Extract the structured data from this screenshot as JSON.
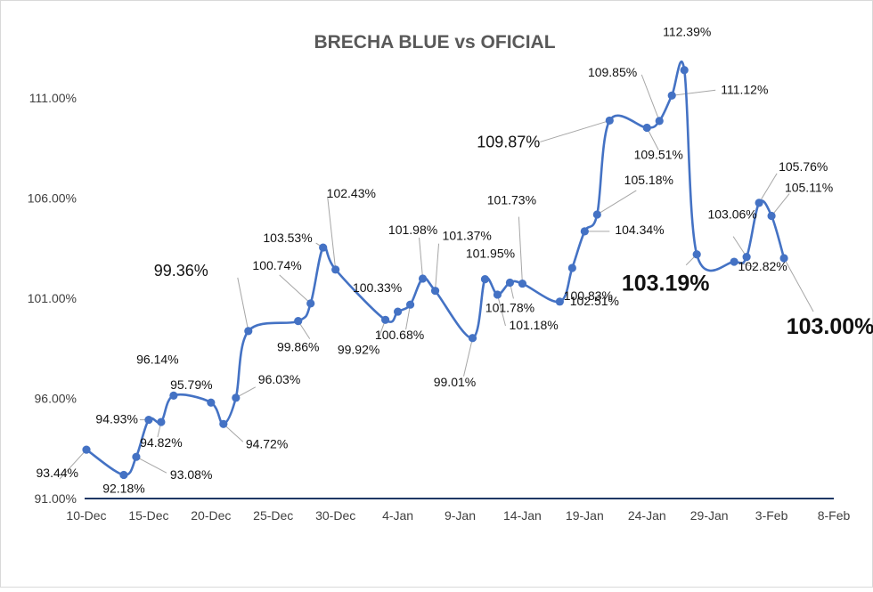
{
  "chart_data": {
    "type": "line",
    "title": "BRECHA BLUE vs OFICIAL",
    "xlabel": "",
    "ylabel": "",
    "x_axis": {
      "range_days": [
        0,
        60
      ],
      "ticks": [
        {
          "label": "10-Dec",
          "day": 0
        },
        {
          "label": "15-Dec",
          "day": 5
        },
        {
          "label": "20-Dec",
          "day": 10
        },
        {
          "label": "25-Dec",
          "day": 15
        },
        {
          "label": "30-Dec",
          "day": 20
        },
        {
          "label": "4-Jan",
          "day": 25
        },
        {
          "label": "9-Jan",
          "day": 30
        },
        {
          "label": "14-Jan",
          "day": 35
        },
        {
          "label": "19-Jan",
          "day": 40
        },
        {
          "label": "24-Jan",
          "day": 45
        },
        {
          "label": "29-Jan",
          "day": 50
        },
        {
          "label": "3-Feb",
          "day": 55
        },
        {
          "label": "8-Feb",
          "day": 60
        }
      ]
    },
    "y_axis": {
      "range": [
        91,
        111.5
      ],
      "ticks": [
        {
          "value": 91,
          "label": "91.00%"
        },
        {
          "value": 96,
          "label": "96.00%"
        },
        {
          "value": 101,
          "label": "101.00%"
        },
        {
          "value": 106,
          "label": "106.00%"
        },
        {
          "value": 111,
          "label": "111.00%"
        }
      ]
    },
    "grid": false,
    "smooth": true,
    "series_color": "#4472c4",
    "label_color": "#111111",
    "leader_color": "#a6a6a6",
    "series": [
      {
        "points": [
          {
            "day": 0,
            "y": 93.44,
            "label": "93.44%"
          },
          {
            "day": 3,
            "y": 92.18,
            "label": "92.18%"
          },
          {
            "day": 4,
            "y": 93.08,
            "label": "93.08%"
          },
          {
            "day": 5,
            "y": 94.93,
            "label": "94.93%"
          },
          {
            "day": 6,
            "y": 94.82,
            "label": "94.82%"
          },
          {
            "day": 7,
            "y": 96.14,
            "label": "96.14%"
          },
          {
            "day": 10,
            "y": 95.79,
            "label": "95.79%"
          },
          {
            "day": 11,
            "y": 94.72,
            "label": "94.72%"
          },
          {
            "day": 12,
            "y": 96.03,
            "label": "96.03%"
          },
          {
            "day": 13,
            "y": 99.36,
            "label": "99.36%"
          },
          {
            "day": 17,
            "y": 99.86,
            "label": "99.86%"
          },
          {
            "day": 18,
            "y": 100.74,
            "label": "100.74%"
          },
          {
            "day": 19,
            "y": 103.53,
            "label": "103.53%"
          },
          {
            "day": 20,
            "y": 102.43,
            "label": "102.43%"
          },
          {
            "day": 24,
            "y": 99.92,
            "label": "99.92%"
          },
          {
            "day": 25,
            "y": 100.33,
            "label": "100.33%"
          },
          {
            "day": 26,
            "y": 100.68,
            "label": "100.68%"
          },
          {
            "day": 27,
            "y": 101.98,
            "label": "101.98%"
          },
          {
            "day": 28,
            "y": 101.37,
            "label": "101.37%"
          },
          {
            "day": 31,
            "y": 99.01,
            "label": "99.01%"
          },
          {
            "day": 32,
            "y": 101.95,
            "label": "101.95%"
          },
          {
            "day": 33,
            "y": 101.18,
            "label": "101.18%"
          },
          {
            "day": 34,
            "y": 101.78,
            "label": "101.78%"
          },
          {
            "day": 35,
            "y": 101.73,
            "label": "101.73%"
          },
          {
            "day": 38,
            "y": 100.83,
            "label": "100.83%"
          },
          {
            "day": 39,
            "y": 102.51,
            "label": "102.51%"
          },
          {
            "day": 40,
            "y": 104.34,
            "label": "104.34%"
          },
          {
            "day": 41,
            "y": 105.18,
            "label": "105.18%"
          },
          {
            "day": 42,
            "y": 109.87,
            "label": "109.87%"
          },
          {
            "day": 45,
            "y": 109.51,
            "label": "109.51%"
          },
          {
            "day": 46,
            "y": 109.85,
            "label": "109.85%"
          },
          {
            "day": 47,
            "y": 111.12,
            "label": "111.12%"
          },
          {
            "day": 48,
            "y": 112.39,
            "label": "112.39%"
          },
          {
            "day": 49,
            "y": 103.19,
            "label": "103.19%"
          },
          {
            "day": 52,
            "y": 102.82,
            "label": "102.82%"
          },
          {
            "day": 53,
            "y": 103.06,
            "label": "103.06%"
          },
          {
            "day": 54,
            "y": 105.76,
            "label": "105.76%"
          },
          {
            "day": 55,
            "y": 105.11,
            "label": "105.11%"
          },
          {
            "day": 56,
            "y": 103.0,
            "label": "103.00%"
          }
        ]
      }
    ]
  }
}
